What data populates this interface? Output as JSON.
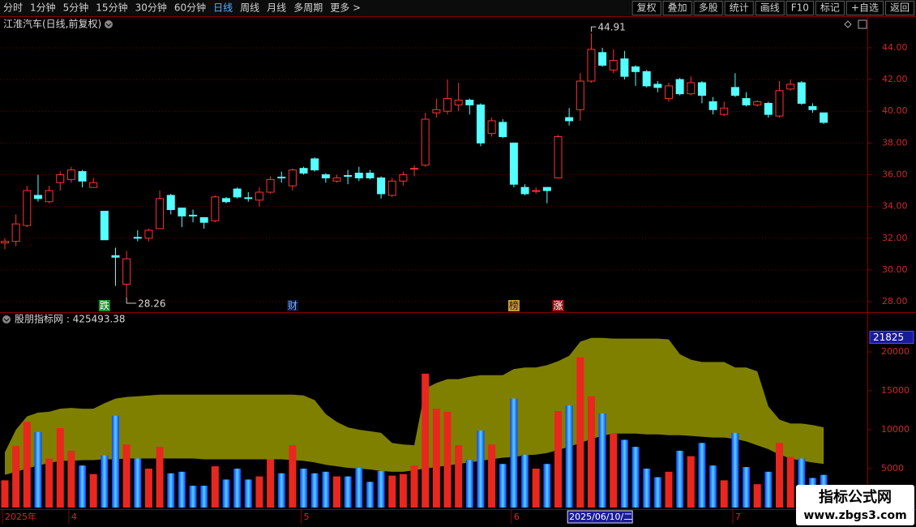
{
  "toolbar": {
    "left": [
      "分时",
      "1分钟",
      "5分钟",
      "15分钟",
      "30分钟",
      "60分钟",
      "日线",
      "周线",
      "月线",
      "多周期",
      "更多 >"
    ],
    "right": [
      "复权",
      "叠加",
      "多股",
      "统计",
      "画线",
      "F10",
      "标记",
      "+自选",
      "返回"
    ]
  },
  "watermark": {
    "title": "指标公式网",
    "url": "www.zbgs3.com"
  },
  "chart_data": [
    {
      "type": "candlestick",
      "title": "江淮汽车(日线,前复权)",
      "up_color": "#ff3232",
      "down_color": "#54ffff",
      "open": [
        31.7,
        31.8,
        32.8,
        34.7,
        34.3,
        35.5,
        35.7,
        36.2,
        35.2,
        33.7,
        30.9,
        29.1,
        32.05,
        32.0,
        32.6,
        34.7,
        33.9,
        33.45,
        33.3,
        33.1,
        34.5,
        35.1,
        34.55,
        34.4,
        34.9,
        35.85,
        35.3,
        36.4,
        37.0,
        36.0,
        35.6,
        35.95,
        36.1,
        36.1,
        35.8,
        34.7,
        35.6,
        36.35,
        36.6,
        39.9,
        40.0,
        40.4,
        40.7,
        40.4,
        38.6,
        39.3,
        38.0,
        35.2,
        34.95,
        35.2,
        35.8,
        39.6,
        40.1,
        41.9,
        43.7,
        42.6,
        43.3,
        42.8,
        42.5,
        41.7,
        40.8,
        42.0,
        41.1,
        41.8,
        40.6,
        39.8,
        41.5,
        40.8,
        40.4,
        40.5,
        39.7,
        41.4,
        41.8,
        40.3,
        39.9
      ],
      "high": [
        32.0,
        33.5,
        35.3,
        36.0,
        35.3,
        36.2,
        36.5,
        36.3,
        35.8,
        33.7,
        31.4,
        31.2,
        32.5,
        32.6,
        35.0,
        34.8,
        33.9,
        33.8,
        33.3,
        34.7,
        34.6,
        35.2,
        34.9,
        35.2,
        35.9,
        36.2,
        36.4,
        36.5,
        37.1,
        36.1,
        36.0,
        36.3,
        36.5,
        36.3,
        35.9,
        35.8,
        36.2,
        36.6,
        39.9,
        40.8,
        42.0,
        41.8,
        40.8,
        40.5,
        39.6,
        39.5,
        38.0,
        35.4,
        35.2,
        35.2,
        38.5,
        40.2,
        42.4,
        44.91,
        44.0,
        43.9,
        43.8,
        42.9,
        42.6,
        41.9,
        41.8,
        42.1,
        42.2,
        41.9,
        40.9,
        40.6,
        42.4,
        41.2,
        40.7,
        40.6,
        41.9,
        42.0,
        41.9,
        40.5,
        39.9
      ],
      "low": [
        31.3,
        31.5,
        32.7,
        34.3,
        34.2,
        35.0,
        35.5,
        35.2,
        35.2,
        31.9,
        29.0,
        28.26,
        31.8,
        31.8,
        32.6,
        33.5,
        32.7,
        33.0,
        32.6,
        33.0,
        34.2,
        34.5,
        34.3,
        34.0,
        34.8,
        35.5,
        35.0,
        36.0,
        36.2,
        35.5,
        35.5,
        35.4,
        35.6,
        35.7,
        34.5,
        34.6,
        35.3,
        35.9,
        36.5,
        39.6,
        39.8,
        40.0,
        39.8,
        37.8,
        38.4,
        38.3,
        35.2,
        34.7,
        34.8,
        34.2,
        35.8,
        39.1,
        39.4,
        41.8,
        42.8,
        42.4,
        42.0,
        41.6,
        41.5,
        41.2,
        40.6,
        41.0,
        41.0,
        40.5,
        39.8,
        39.7,
        40.9,
        40.3,
        40.3,
        39.6,
        39.6,
        41.3,
        40.4,
        39.9,
        39.2
      ],
      "close": [
        31.8,
        32.9,
        35.0,
        34.5,
        35.0,
        36.0,
        36.3,
        35.6,
        35.5,
        31.9,
        30.8,
        30.7,
        32.0,
        32.5,
        34.5,
        33.8,
        33.4,
        33.4,
        33.0,
        34.6,
        34.3,
        34.6,
        34.5,
        34.9,
        35.7,
        35.8,
        36.3,
        36.1,
        36.3,
        35.8,
        35.8,
        35.9,
        35.8,
        35.8,
        34.8,
        35.6,
        36.0,
        36.4,
        39.5,
        40.1,
        40.8,
        40.7,
        40.4,
        38.0,
        39.4,
        38.4,
        35.4,
        34.8,
        35.0,
        35.0,
        38.4,
        39.4,
        41.9,
        43.9,
        42.9,
        43.2,
        42.2,
        42.5,
        41.6,
        41.5,
        41.6,
        41.1,
        41.8,
        41.0,
        40.1,
        40.2,
        41.0,
        40.4,
        40.6,
        39.8,
        41.3,
        41.7,
        40.5,
        40.1,
        39.3
      ],
      "events": [
        null,
        null,
        null,
        null,
        null,
        null,
        null,
        null,
        null,
        "跌",
        null,
        null,
        null,
        null,
        null,
        null,
        null,
        null,
        null,
        null,
        null,
        null,
        null,
        null,
        null,
        null,
        "财",
        null,
        null,
        null,
        null,
        null,
        null,
        null,
        null,
        null,
        null,
        null,
        null,
        null,
        null,
        null,
        null,
        null,
        null,
        null,
        "榜",
        null,
        null,
        null,
        "涨",
        null,
        null,
        null,
        null,
        null,
        null,
        null,
        null,
        null,
        null,
        null,
        null,
        null,
        null,
        null,
        null,
        null,
        null,
        null,
        null,
        null,
        null,
        null,
        null
      ],
      "ylim": [
        27.39,
        45.99
      ],
      "yticks": [
        {
          "value": 28,
          "label": "28.00"
        },
        {
          "value": 30,
          "label": "30.00"
        },
        {
          "value": 32,
          "label": "32.00"
        },
        {
          "value": 34,
          "label": "34.00"
        },
        {
          "value": 36,
          "label": "36.00"
        },
        {
          "value": 38,
          "label": "38.00"
        },
        {
          "value": 40,
          "label": "40.00"
        },
        {
          "value": 42,
          "label": "42.00"
        },
        {
          "value": 44,
          "label": "44.00"
        }
      ],
      "grid": true
    },
    {
      "type": "bar",
      "title": "股朋指标网 : 425493.38",
      "categories": [
        "2025年",
        null,
        null,
        null,
        null,
        null,
        "4",
        null,
        null,
        null,
        null,
        null,
        null,
        null,
        null,
        null,
        null,
        null,
        null,
        null,
        null,
        null,
        null,
        null,
        null,
        null,
        null,
        "5",
        null,
        null,
        null,
        null,
        null,
        null,
        null,
        null,
        null,
        null,
        null,
        null,
        null,
        null,
        null,
        null,
        null,
        null,
        "6",
        null,
        null,
        null,
        null,
        "2025/06/10/二",
        null,
        null,
        null,
        null,
        null,
        null,
        null,
        null,
        null,
        null,
        null,
        null,
        null,
        null,
        "7",
        null,
        null,
        null,
        null,
        null,
        null,
        null,
        null
      ],
      "values": [
        3500,
        7900,
        11000,
        9700,
        6300,
        10200,
        7300,
        5400,
        4300,
        6700,
        11800,
        8100,
        6300,
        5000,
        7800,
        4400,
        4600,
        2800,
        2800,
        5300,
        3600,
        5000,
        3600,
        4000,
        6200,
        4400,
        8000,
        5000,
        4400,
        4600,
        4000,
        4000,
        5100,
        3300,
        4700,
        4100,
        4300,
        5400,
        17200,
        12700,
        12300,
        8000,
        6100,
        9900,
        8100,
        5600,
        14000,
        6800,
        5000,
        5600,
        12400,
        13100,
        19300,
        14300,
        12100,
        9500,
        8700,
        7800,
        5000,
        3900,
        4600,
        7300,
        6600,
        8300,
        5400,
        3500,
        9600,
        5200,
        3000,
        4600,
        8300,
        6500,
        6300,
        3800,
        4200
      ],
      "up_color": "#e8271f",
      "down_color": "#1e8cff",
      "band": {
        "color": "#808000",
        "upper": [
          7100,
          10000,
          11700,
          12200,
          12300,
          12700,
          12800,
          12700,
          12700,
          13400,
          14000,
          14200,
          14300,
          14400,
          14500,
          14500,
          14500,
          14500,
          14500,
          14500,
          14500,
          14500,
          14500,
          14500,
          14500,
          14500,
          14500,
          14400,
          13800,
          12000,
          11000,
          10300,
          10000,
          9800,
          9600,
          8300,
          8100,
          8000,
          15300,
          16000,
          16500,
          16500,
          16800,
          17000,
          17000,
          17000,
          17800,
          18000,
          18000,
          18300,
          18800,
          19500,
          21300,
          21800,
          21800,
          21700,
          21700,
          21700,
          21700,
          21700,
          21600,
          19700,
          19000,
          18700,
          18700,
          18700,
          18000,
          18000,
          17500,
          13000,
          11300,
          10800,
          10800,
          10600,
          10300
        ],
        "lower": [
          4200,
          4600,
          5000,
          5400,
          5700,
          6000,
          6000,
          6100,
          6100,
          6200,
          6200,
          6300,
          6300,
          6300,
          6300,
          6300,
          6300,
          6300,
          6200,
          6200,
          6200,
          6200,
          6200,
          6200,
          6200,
          6200,
          6100,
          6000,
          5800,
          5500,
          5300,
          5100,
          5000,
          4900,
          4700,
          4600,
          4600,
          4800,
          5000,
          5200,
          5400,
          5600,
          5800,
          6000,
          6200,
          6400,
          6500,
          6700,
          6800,
          7000,
          7400,
          7800,
          8300,
          8800,
          9200,
          9500,
          9500,
          9500,
          9400,
          9400,
          9300,
          9300,
          9200,
          9100,
          9000,
          9000,
          8800,
          8500,
          8000,
          7500,
          6800,
          6300,
          6000,
          5800,
          5600
        ]
      },
      "marker_value": 21825,
      "ylim": [
        0,
        25000
      ],
      "yticks": [
        5000,
        10000,
        15000,
        20000
      ],
      "grid": false
    }
  ]
}
